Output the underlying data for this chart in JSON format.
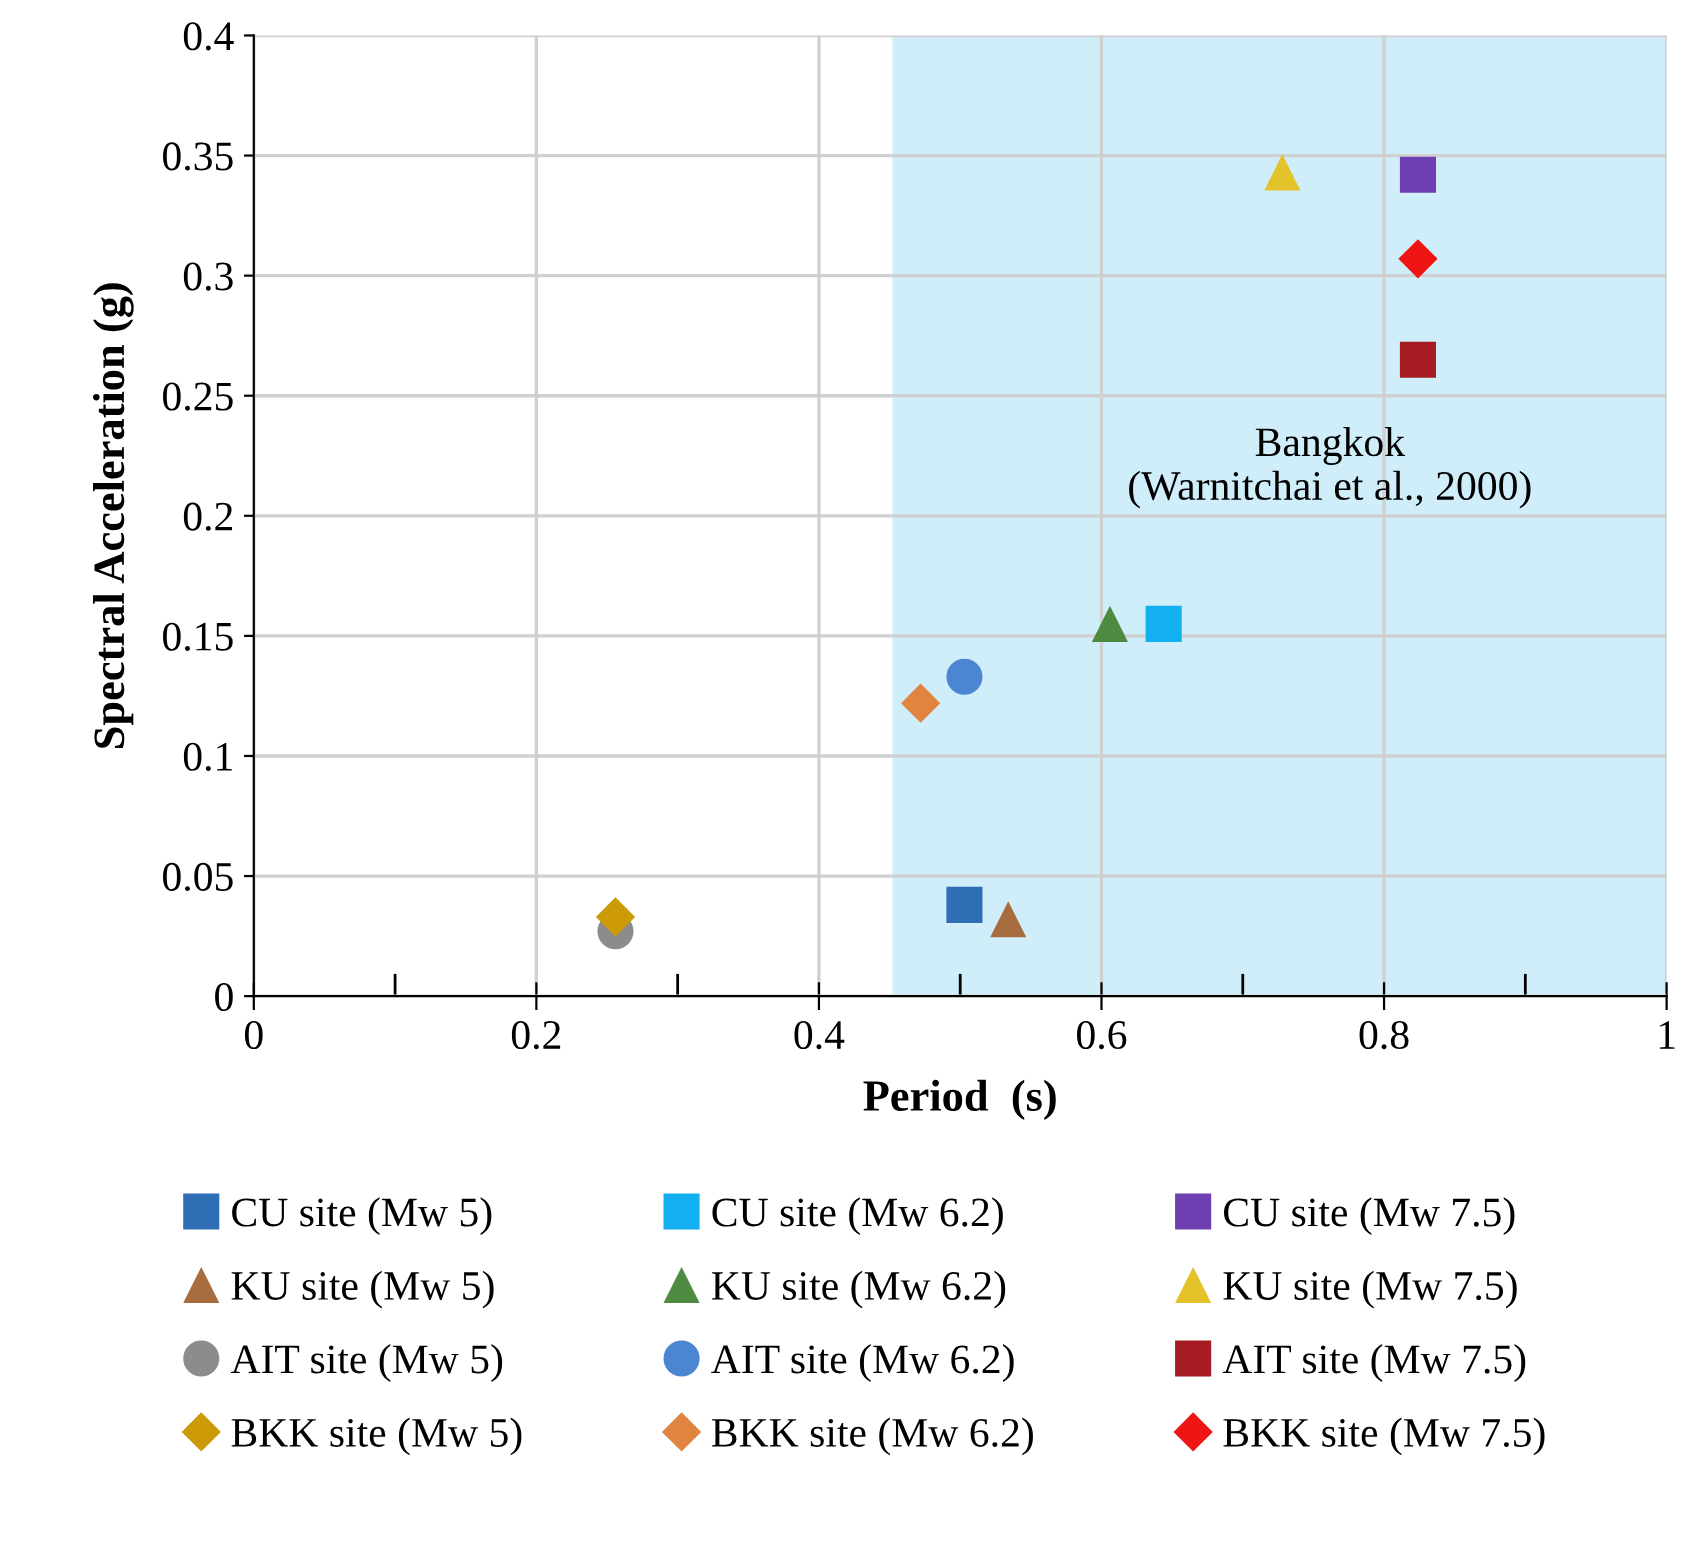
{
  "chart_data": {
    "type": "scatter",
    "xlabel": "Period  (s)",
    "ylabel": "Spectral Acceleration (g)",
    "xlim": [
      0,
      1
    ],
    "ylim": [
      0,
      0.4
    ],
    "xticks": [
      0,
      0.2,
      0.4,
      0.6,
      0.8,
      1
    ],
    "yticks": [
      0,
      0.05,
      0.1,
      0.15,
      0.2,
      0.25,
      0.3,
      0.35,
      0.4
    ],
    "grid": true,
    "legend": "bottom",
    "bands": [
      {
        "axis": "x",
        "from": 0.452,
        "to": 1,
        "label": "Bangkok\n(Warnitchai et al., 2000)",
        "color": "#d0eef9"
      }
    ],
    "series": [
      {
        "name": "CU site (Mw 5)",
        "color": "#2f6db5",
        "marker": "square",
        "x": [
          0.503
        ],
        "values": [
          0.038
        ]
      },
      {
        "name": "KU site (Mw 5)",
        "color": "#a86d3e",
        "marker": "triangle",
        "x": [
          0.534
        ],
        "values": [
          0.032
        ]
      },
      {
        "name": "AIT site (Mw 5)",
        "color": "#8c8c8c",
        "marker": "circle",
        "x": [
          0.256
        ],
        "values": [
          0.027
        ]
      },
      {
        "name": "BKK site (Mw 5)",
        "color": "#cc9a06",
        "marker": "diamond",
        "x": [
          0.256
        ],
        "values": [
          0.033
        ]
      },
      {
        "name": "CU site (Mw 6.2)",
        "color": "#12b0f0",
        "marker": "square",
        "x": [
          0.644
        ],
        "values": [
          0.155
        ]
      },
      {
        "name": "KU site (Mw 6.2)",
        "color": "#4f8a41",
        "marker": "triangle",
        "x": [
          0.606
        ],
        "values": [
          0.155
        ]
      },
      {
        "name": "AIT site (Mw 6.2)",
        "color": "#4a86d2",
        "marker": "circle",
        "x": [
          0.503
        ],
        "values": [
          0.133
        ]
      },
      {
        "name": "BKK site (Mw 6.2)",
        "color": "#e0843f",
        "marker": "diamond",
        "x": [
          0.472
        ],
        "values": [
          0.122
        ]
      },
      {
        "name": "CU site (Mw 7.5)",
        "color": "#6e3fb0",
        "marker": "square",
        "x": [
          0.824
        ],
        "values": [
          0.342
        ]
      },
      {
        "name": "KU site (Mw 7.5)",
        "color": "#e3c22a",
        "marker": "triangle",
        "x": [
          0.728
        ],
        "values": [
          0.343
        ]
      },
      {
        "name": "AIT site (Mw 7.5)",
        "color": "#a51d22",
        "marker": "square",
        "x": [
          0.824
        ],
        "values": [
          0.265
        ]
      },
      {
        "name": "BKK site (Mw 7.5)",
        "color": "#f01515",
        "marker": "diamond",
        "x": [
          0.824
        ],
        "values": [
          0.307
        ]
      }
    ]
  }
}
